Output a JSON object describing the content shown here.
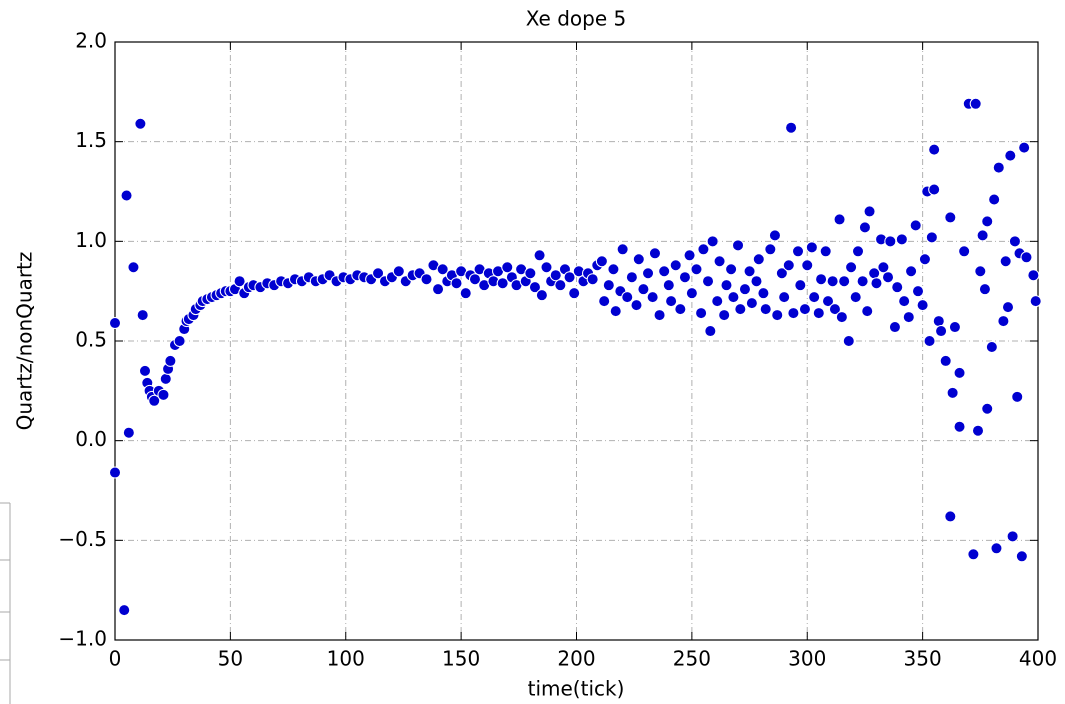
{
  "chart_data": {
    "type": "scatter",
    "title": "Xe dope 5",
    "x_label": "time(tick)",
    "y_label": "Quartz/nonQuartz",
    "color": "#0000d0",
    "grid": true,
    "xlim": [
      0,
      400
    ],
    "xticks": [
      0,
      50,
      100,
      150,
      200,
      250,
      300,
      350,
      400
    ],
    "ylim": [
      -1.0,
      2.0
    ],
    "yticks": [
      {
        "value": -1.0,
        "label": "−1.0"
      },
      {
        "value": -0.5,
        "label": "−0.5"
      },
      {
        "value": 0.0,
        "label": "0.0"
      },
      {
        "value": 0.5,
        "label": "0.5"
      },
      {
        "value": 1.0,
        "label": "1.0"
      },
      {
        "value": 1.5,
        "label": "1.5"
      },
      {
        "value": 2.0,
        "label": "2.0"
      }
    ],
    "x": [
      0,
      0,
      4,
      5,
      6,
      8,
      11,
      12,
      13,
      14,
      15,
      16,
      17,
      19,
      21,
      22,
      23,
      24,
      26,
      28,
      30,
      31,
      32,
      34,
      35,
      37,
      38,
      40,
      42,
      44,
      46,
      48,
      50,
      52,
      54,
      56,
      58,
      60,
      63,
      66,
      69,
      72,
      75,
      78,
      81,
      84,
      87,
      90,
      93,
      96,
      99,
      102,
      105,
      108,
      111,
      114,
      117,
      120,
      123,
      126,
      129,
      132,
      135,
      138,
      140,
      142,
      144,
      146,
      148,
      150,
      152,
      154,
      156,
      158,
      160,
      162,
      164,
      166,
      168,
      170,
      172,
      174,
      176,
      178,
      180,
      182,
      184,
      185,
      187,
      189,
      191,
      193,
      195,
      197,
      199,
      201,
      203,
      205,
      207,
      209,
      211,
      212,
      214,
      216,
      217,
      219,
      220,
      222,
      224,
      226,
      227,
      229,
      231,
      233,
      234,
      236,
      238,
      240,
      241,
      243,
      245,
      247,
      249,
      250,
      252,
      254,
      255,
      257,
      258,
      259,
      261,
      262,
      264,
      265,
      267,
      268,
      270,
      271,
      273,
      275,
      276,
      278,
      279,
      281,
      282,
      284,
      286,
      287,
      289,
      290,
      292,
      293,
      294,
      296,
      297,
      299,
      300,
      302,
      303,
      305,
      306,
      308,
      309,
      311,
      312,
      314,
      315,
      316,
      318,
      319,
      321,
      322,
      324,
      325,
      326,
      327,
      329,
      330,
      332,
      333,
      335,
      336,
      338,
      339,
      341,
      342,
      344,
      345,
      347,
      348,
      350,
      351,
      352,
      353,
      354,
      355,
      355,
      357,
      358,
      360,
      362,
      362,
      363,
      364,
      366,
      366,
      368,
      370,
      372,
      373,
      374,
      375,
      376,
      377,
      378,
      378,
      380,
      381,
      382,
      383,
      385,
      386,
      387,
      388,
      389,
      390,
      391,
      392,
      393,
      394,
      395,
      398,
      399
    ],
    "y": [
      -0.16,
      0.59,
      -0.85,
      1.23,
      0.04,
      0.87,
      1.59,
      0.63,
      0.35,
      0.29,
      0.25,
      0.22,
      0.2,
      0.25,
      0.23,
      0.31,
      0.36,
      0.4,
      0.48,
      0.5,
      0.56,
      0.6,
      0.61,
      0.63,
      0.66,
      0.68,
      0.7,
      0.71,
      0.72,
      0.73,
      0.74,
      0.75,
      0.75,
      0.76,
      0.8,
      0.74,
      0.77,
      0.78,
      0.77,
      0.79,
      0.78,
      0.8,
      0.79,
      0.81,
      0.8,
      0.82,
      0.8,
      0.81,
      0.83,
      0.8,
      0.82,
      0.81,
      0.83,
      0.82,
      0.81,
      0.84,
      0.8,
      0.82,
      0.85,
      0.8,
      0.83,
      0.84,
      0.81,
      0.88,
      0.76,
      0.86,
      0.8,
      0.83,
      0.79,
      0.85,
      0.74,
      0.83,
      0.81,
      0.86,
      0.78,
      0.84,
      0.8,
      0.85,
      0.79,
      0.87,
      0.82,
      0.78,
      0.86,
      0.8,
      0.84,
      0.77,
      0.93,
      0.73,
      0.87,
      0.8,
      0.83,
      0.78,
      0.86,
      0.82,
      0.74,
      0.85,
      0.8,
      0.84,
      0.81,
      0.88,
      0.9,
      0.7,
      0.78,
      0.86,
      0.65,
      0.75,
      0.96,
      0.72,
      0.82,
      0.68,
      0.91,
      0.76,
      0.84,
      0.72,
      0.94,
      0.63,
      0.85,
      0.78,
      0.7,
      0.88,
      0.66,
      0.82,
      0.93,
      0.74,
      0.86,
      0.64,
      0.96,
      0.8,
      0.55,
      1.0,
      0.7,
      0.9,
      0.63,
      0.78,
      0.86,
      0.72,
      0.98,
      0.66,
      0.76,
      0.85,
      0.69,
      0.8,
      0.91,
      0.74,
      0.66,
      0.96,
      1.03,
      0.63,
      0.84,
      0.72,
      0.88,
      1.57,
      0.64,
      0.95,
      0.78,
      0.66,
      0.88,
      0.97,
      0.72,
      0.64,
      0.81,
      0.95,
      0.7,
      0.8,
      0.66,
      1.11,
      0.62,
      0.8,
      0.5,
      0.87,
      0.72,
      0.95,
      0.8,
      1.07,
      0.65,
      1.15,
      0.84,
      0.79,
      1.01,
      0.87,
      0.82,
      1.0,
      0.57,
      0.77,
      1.01,
      0.7,
      0.62,
      0.85,
      1.08,
      0.75,
      0.68,
      0.91,
      1.25,
      0.5,
      1.02,
      1.26,
      1.46,
      0.6,
      0.55,
      0.4,
      1.12,
      -0.38,
      0.24,
      0.57,
      0.07,
      0.34,
      0.95,
      1.69,
      -0.57,
      1.69,
      0.05,
      0.85,
      1.03,
      0.76,
      1.1,
      0.16,
      0.47,
      1.21,
      -0.54,
      1.37,
      0.6,
      0.9,
      0.67,
      1.43,
      -0.48,
      1.0,
      0.22,
      0.94,
      -0.58,
      1.47,
      0.92,
      0.83,
      0.7
    ]
  }
}
